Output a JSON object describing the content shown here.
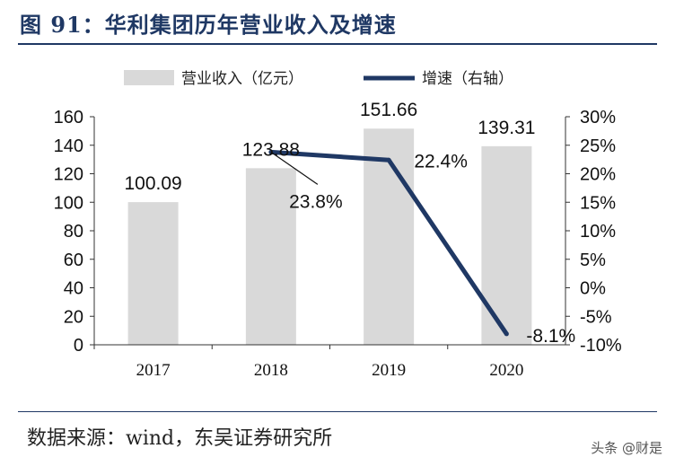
{
  "header": {
    "title": "图 91：华利集团历年营业收入及增速"
  },
  "footer": {
    "source": "数据来源：wind，东吴证券研究所",
    "watermark": "头条 @财是"
  },
  "colors": {
    "bar": "#d9d9d9",
    "line": "#1f3864",
    "title": "#1f3864"
  },
  "chart_data": {
    "type": "bar",
    "categories": [
      "2017",
      "2018",
      "2019",
      "2020"
    ],
    "series": [
      {
        "name": "营业收入（亿元）",
        "type": "bar",
        "axis": "left",
        "values": [
          100.09,
          123.88,
          151.66,
          139.31
        ],
        "labels": [
          "100.09",
          "123.88",
          "151.66",
          "139.31"
        ]
      },
      {
        "name": "增速（右轴）",
        "type": "line",
        "axis": "right",
        "x": [
          "2018",
          "2019",
          "2020"
        ],
        "values": [
          23.8,
          22.4,
          -8.1
        ],
        "labels": [
          "23.8%",
          "22.4%",
          "-8.1%"
        ]
      }
    ],
    "y_left": {
      "lim": [
        0,
        160
      ],
      "ticks": [
        "0",
        "20",
        "40",
        "60",
        "80",
        "100",
        "120",
        "140",
        "160"
      ]
    },
    "y_right": {
      "lim": [
        -10,
        30
      ],
      "ticks": [
        "-10%",
        "-5%",
        "0%",
        "5%",
        "10%",
        "15%",
        "20%",
        "25%",
        "30%"
      ]
    },
    "legend": "top",
    "grid": false
  }
}
